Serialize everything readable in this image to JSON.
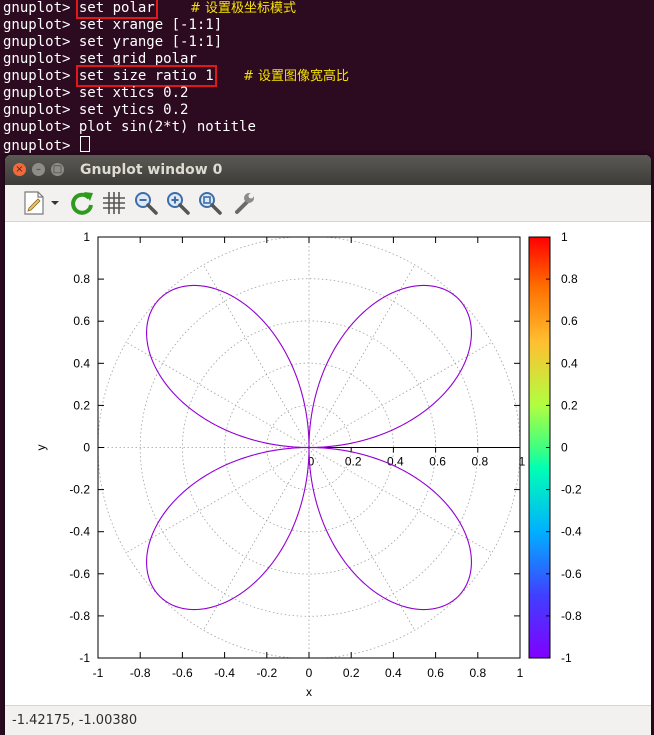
{
  "terminal": {
    "prompt": "gnuplot>",
    "lines": [
      {
        "cmd": "set polar",
        "comment": "# 设置极坐标模式"
      },
      {
        "cmd": "set xrange [-1:1]",
        "comment": ""
      },
      {
        "cmd": "set yrange [-1:1]",
        "comment": ""
      },
      {
        "cmd": "set grid polar",
        "comment": ""
      },
      {
        "cmd": "set size ratio 1",
        "comment": "# 设置图像宽高比"
      },
      {
        "cmd": "set xtics 0.2",
        "comment": ""
      },
      {
        "cmd": "set ytics 0.2",
        "comment": ""
      },
      {
        "cmd": "plot sin(2*t) notitle",
        "comment": ""
      },
      {
        "cmd": "",
        "comment": ""
      }
    ],
    "highlight_color": "#e11818",
    "comment_color": "#f5e400"
  },
  "window": {
    "title": "Gnuplot window 0",
    "close_glyph": "×",
    "min_glyph": "–",
    "max_glyph": "□",
    "toolbar": [
      {
        "name": "export-icon",
        "tooltip": ""
      },
      {
        "name": "replot-icon",
        "tooltip": ""
      },
      {
        "name": "grid-icon",
        "tooltip": ""
      },
      {
        "name": "zoom-out-icon",
        "tooltip": ""
      },
      {
        "name": "zoom-in-icon",
        "tooltip": ""
      },
      {
        "name": "zoom-fit-icon",
        "tooltip": ""
      },
      {
        "name": "settings-wrench-icon",
        "tooltip": ""
      }
    ],
    "status": "-1.42175, -1.00380"
  },
  "chart_data": {
    "type": "line",
    "mode": "polar",
    "expression": "sin(2*t)",
    "title": "",
    "xlabel": "x",
    "ylabel": "y",
    "xlim": [
      -1,
      1
    ],
    "ylim": [
      -1,
      1
    ],
    "xticks": [
      -1,
      -0.8,
      -0.6,
      -0.4,
      -0.2,
      0,
      0.2,
      0.4,
      0.6,
      0.8,
      1
    ],
    "yticks": [
      -1,
      -0.8,
      -0.6,
      -0.4,
      -0.2,
      0,
      0.2,
      0.4,
      0.6,
      0.8,
      1
    ],
    "polar_axis_ticks": [
      0,
      0.2,
      0.4,
      0.6,
      0.8,
      1
    ],
    "grid": "polar",
    "grid_radii": [
      0.2,
      0.4,
      0.6,
      0.8,
      1.0
    ],
    "grid_angles_deg": [
      0,
      30,
      60,
      90,
      120,
      150,
      180,
      210,
      240,
      270,
      300,
      330
    ],
    "line_color": "#9400d3",
    "colorbox": {
      "range": [
        -1,
        1
      ],
      "ticks": [
        "1",
        "0.8",
        "0.6",
        "0.4",
        "0.2",
        "0",
        "-0.2",
        "-0.4",
        "-0.6",
        "-0.8",
        "-1"
      ]
    }
  }
}
